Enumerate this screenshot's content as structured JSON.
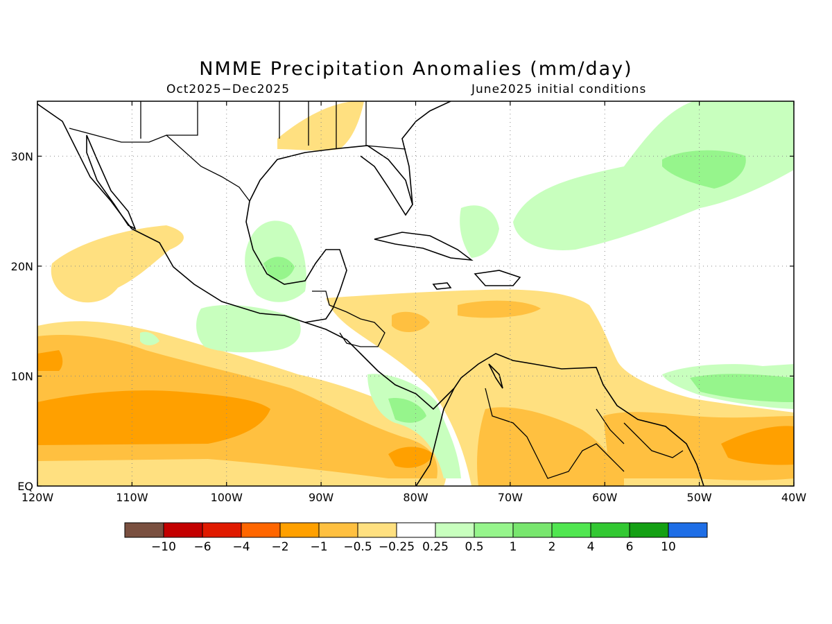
{
  "title": "NMME Precipitation Anomalies (mm/day)",
  "subtitle_left": "Oct2025−Dec2025",
  "subtitle_right": "June2025 initial conditions",
  "map": {
    "lon_range": [
      -120,
      -40
    ],
    "lat_range": [
      0,
      35
    ],
    "grid_dotted": true,
    "x_ticks": [
      "120W",
      "110W",
      "100W",
      "90W",
      "80W",
      "70W",
      "60W",
      "50W",
      "40W"
    ],
    "y_ticks": [
      "EQ",
      "10N",
      "20N",
      "30N"
    ]
  },
  "colorbar": {
    "colors": [
      "#7a5040",
      "#c30000",
      "#e01a00",
      "#ff6600",
      "#ffa000",
      "#ffc040",
      "#ffe080",
      "#ffffff",
      "#c8ffbe",
      "#96f58c",
      "#78e66e",
      "#50e650",
      "#32c832",
      "#14a014",
      "#1e6ee6"
    ],
    "labels": [
      "−10",
      "−6",
      "−4",
      "−2",
      "−1",
      "−0.5",
      "−0.25",
      "0.25",
      "0.5",
      "1",
      "2",
      "4",
      "6",
      "10"
    ]
  }
}
